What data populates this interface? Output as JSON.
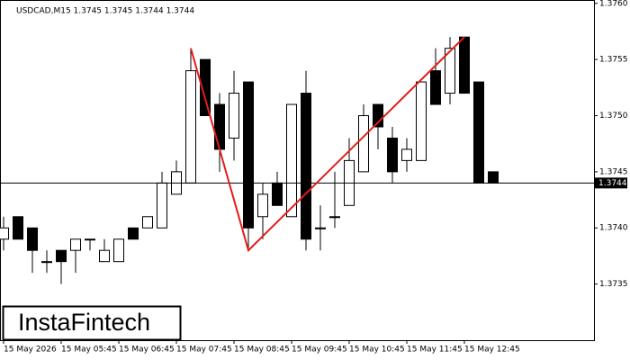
{
  "chart_data": {
    "type": "candlestick",
    "title": "USDCAD,M15  1.3745 1.3745 1.3744 1.3744",
    "watermark": "InstaFintech",
    "categories": [
      "15 May 2026",
      null,
      null,
      null,
      "15 May 05:45",
      null,
      null,
      null,
      "15 May 06:45",
      null,
      null,
      null,
      "15 May 07:45",
      null,
      null,
      null,
      "15 May 08:45",
      null,
      null,
      null,
      "15 May 09:45",
      null,
      null,
      null,
      "15 May 10:45",
      null,
      null,
      null,
      "15 May 11:45",
      null,
      null,
      null,
      "15 May 12:45",
      null,
      null
    ],
    "open": [
      1.3739,
      1.3741,
      1.374,
      1.3737,
      1.3738,
      1.3738,
      1.3739,
      1.3737,
      1.3737,
      1.374,
      1.374,
      1.374,
      1.3743,
      1.3744,
      1.3755,
      1.3751,
      1.3748,
      1.3753,
      1.3741,
      1.3744,
      1.3741,
      1.3752,
      1.374,
      1.3741,
      1.3742,
      1.3745,
      1.3751,
      1.3748,
      1.3746,
      1.3746,
      1.3754,
      1.3752,
      1.3757,
      1.3753,
      1.3745
    ],
    "high": [
      1.3741,
      1.3741,
      1.374,
      1.3738,
      1.3738,
      1.3739,
      1.3739,
      1.3739,
      1.3739,
      1.374,
      1.3741,
      1.3745,
      1.3746,
      1.3756,
      1.3755,
      1.3752,
      1.3754,
      1.3753,
      1.3744,
      1.3745,
      1.3751,
      1.3754,
      1.3742,
      1.3745,
      1.3748,
      1.3751,
      1.3751,
      1.3749,
      1.3748,
      1.3753,
      1.3756,
      1.3757,
      1.3757,
      1.3753,
      1.3745
    ],
    "low": [
      1.3738,
      1.3739,
      1.3736,
      1.3736,
      1.3735,
      1.3736,
      1.3738,
      1.3737,
      1.3737,
      1.3739,
      1.374,
      1.374,
      1.3743,
      1.3744,
      1.375,
      1.3745,
      1.3746,
      1.3738,
      1.3739,
      1.3742,
      1.3741,
      1.3738,
      1.3738,
      1.374,
      1.3742,
      1.3745,
      1.3747,
      1.3744,
      1.3745,
      1.3746,
      1.3751,
      1.3751,
      1.3752,
      1.3744,
      1.3744
    ],
    "close": [
      1.374,
      1.3739,
      1.3738,
      1.3737,
      1.3737,
      1.3739,
      1.3739,
      1.3738,
      1.3739,
      1.3739,
      1.3741,
      1.3744,
      1.3745,
      1.3754,
      1.375,
      1.3747,
      1.3752,
      1.374,
      1.3743,
      1.3742,
      1.3751,
      1.3739,
      1.374,
      1.3741,
      1.3746,
      1.375,
      1.3749,
      1.3745,
      1.3747,
      1.3753,
      1.3751,
      1.3756,
      1.3752,
      1.3744,
      1.3744
    ],
    "current_price": {
      "value": 1.3744,
      "label": "1.3744"
    },
    "pattern": {
      "color": "#e41b1b",
      "indices": [
        13,
        17,
        32
      ],
      "values": [
        1.3756,
        1.3738,
        1.3757
      ]
    },
    "ylim": [
      1.373,
      1.37603
    ],
    "yticks": [
      {
        "value": 1.376,
        "label": "1.3760"
      },
      1.3755,
      {
        "value": 1.375,
        "label": "1.3750"
      },
      1.3745,
      {
        "value": 1.374,
        "label": "1.3740"
      },
      1.3735
    ]
  }
}
